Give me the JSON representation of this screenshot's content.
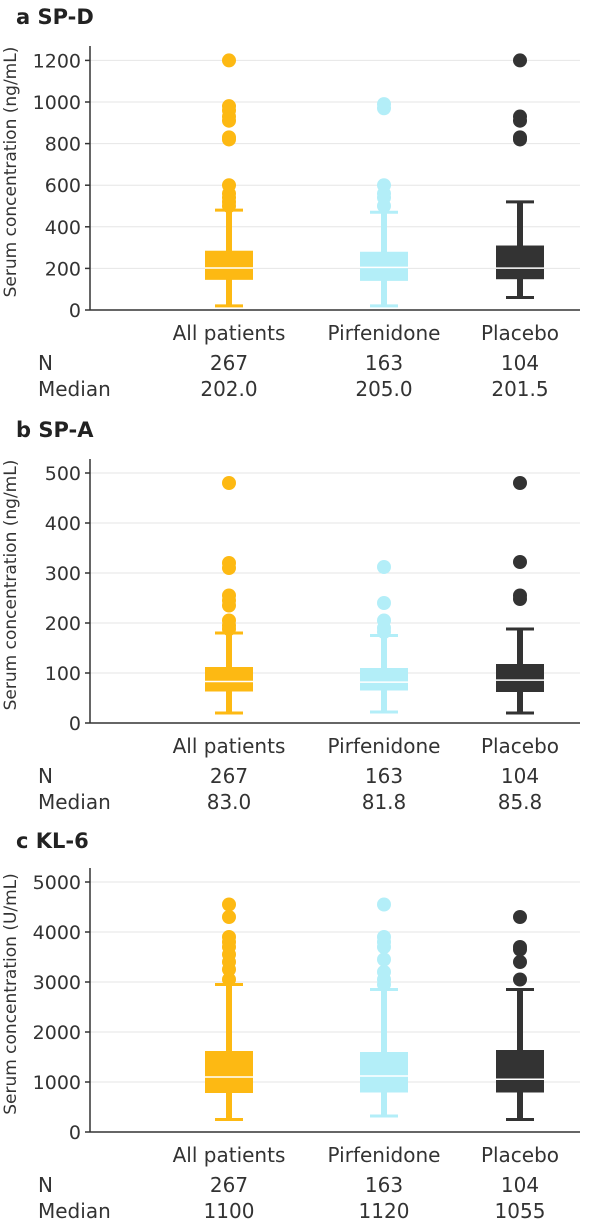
{
  "chart_data": [
    {
      "type": "box",
      "panel_letter": "a",
      "title": "SP-D",
      "ylabel": "Serum concentration (ng/mL)",
      "ylim": [
        0,
        1250
      ],
      "yticks": [
        0,
        200,
        400,
        600,
        800,
        1000,
        1200
      ],
      "categories": [
        "All patients",
        "Pirfenidone",
        "Placebo"
      ],
      "colors": [
        "#FDB913",
        "#B3EEF8",
        "#333333"
      ],
      "n_label": "N",
      "median_label": "Median",
      "n": [
        "267",
        "163",
        "104"
      ],
      "median_text": [
        "202.0",
        "205.0",
        "201.5"
      ],
      "boxes": [
        {
          "whisker_low": 20,
          "q1": 145,
          "median": 202,
          "q3": 285,
          "whisker_high": 480,
          "outliers": [
            500,
            520,
            540,
            560,
            600,
            820,
            830,
            910,
            930,
            960,
            980,
            1200
          ]
        },
        {
          "whisker_low": 20,
          "q1": 140,
          "median": 205,
          "q3": 280,
          "whisker_high": 470,
          "outliers": [
            500,
            540,
            560,
            600,
            970,
            990
          ]
        },
        {
          "whisker_low": 60,
          "q1": 148,
          "median": 201.5,
          "q3": 310,
          "whisker_high": 520,
          "outliers": [
            820,
            830,
            910,
            930,
            1200
          ]
        }
      ]
    },
    {
      "type": "box",
      "panel_letter": "b",
      "title": "SP-A",
      "ylabel": "Serum concentration (ng/mL)",
      "ylim": [
        0,
        520
      ],
      "yticks": [
        0,
        100,
        200,
        300,
        400,
        500
      ],
      "categories": [
        "All patients",
        "Pirfenidone",
        "Placebo"
      ],
      "colors": [
        "#FDB913",
        "#B3EEF8",
        "#333333"
      ],
      "n_label": "N",
      "median_label": "Median",
      "n": [
        "267",
        "163",
        "104"
      ],
      "median_text": [
        "83.0",
        "81.8",
        "85.8"
      ],
      "boxes": [
        {
          "whisker_low": 20,
          "q1": 63,
          "median": 83,
          "q3": 112,
          "whisker_high": 180,
          "outliers": [
            188,
            195,
            205,
            235,
            245,
            255,
            310,
            320,
            480
          ]
        },
        {
          "whisker_low": 22,
          "q1": 65,
          "median": 81.8,
          "q3": 110,
          "whisker_high": 175,
          "outliers": [
            182,
            190,
            205,
            240,
            312
          ]
        },
        {
          "whisker_low": 20,
          "q1": 62,
          "median": 85.8,
          "q3": 118,
          "whisker_high": 188,
          "outliers": [
            248,
            255,
            322,
            480
          ]
        }
      ]
    },
    {
      "type": "box",
      "panel_letter": "c",
      "title": "KL-6",
      "ylabel": "Serum concentration (U/mL)",
      "ylim": [
        0,
        5200
      ],
      "yticks": [
        0,
        1000,
        2000,
        3000,
        4000,
        5000
      ],
      "categories": [
        "All patients",
        "Pirfenidone",
        "Placebo"
      ],
      "colors": [
        "#FDB913",
        "#B3EEF8",
        "#333333"
      ],
      "n_label": "N",
      "median_label": "Median",
      "n": [
        "267",
        "163",
        "104"
      ],
      "median_text": [
        "1100",
        "1120",
        "1055"
      ],
      "boxes": [
        {
          "whisker_low": 250,
          "q1": 780,
          "median": 1100,
          "q3": 1620,
          "whisker_high": 2950,
          "outliers": [
            3050,
            3250,
            3400,
            3550,
            3700,
            3800,
            3900,
            4300,
            4550
          ]
        },
        {
          "whisker_low": 320,
          "q1": 790,
          "median": 1120,
          "q3": 1600,
          "whisker_high": 2850,
          "outliers": [
            2950,
            3050,
            3200,
            3450,
            3700,
            3800,
            3900,
            4550
          ]
        },
        {
          "whisker_low": 250,
          "q1": 790,
          "median": 1055,
          "q3": 1640,
          "whisker_high": 2850,
          "outliers": [
            3050,
            3400,
            3650,
            3700,
            4300
          ]
        }
      ]
    }
  ]
}
